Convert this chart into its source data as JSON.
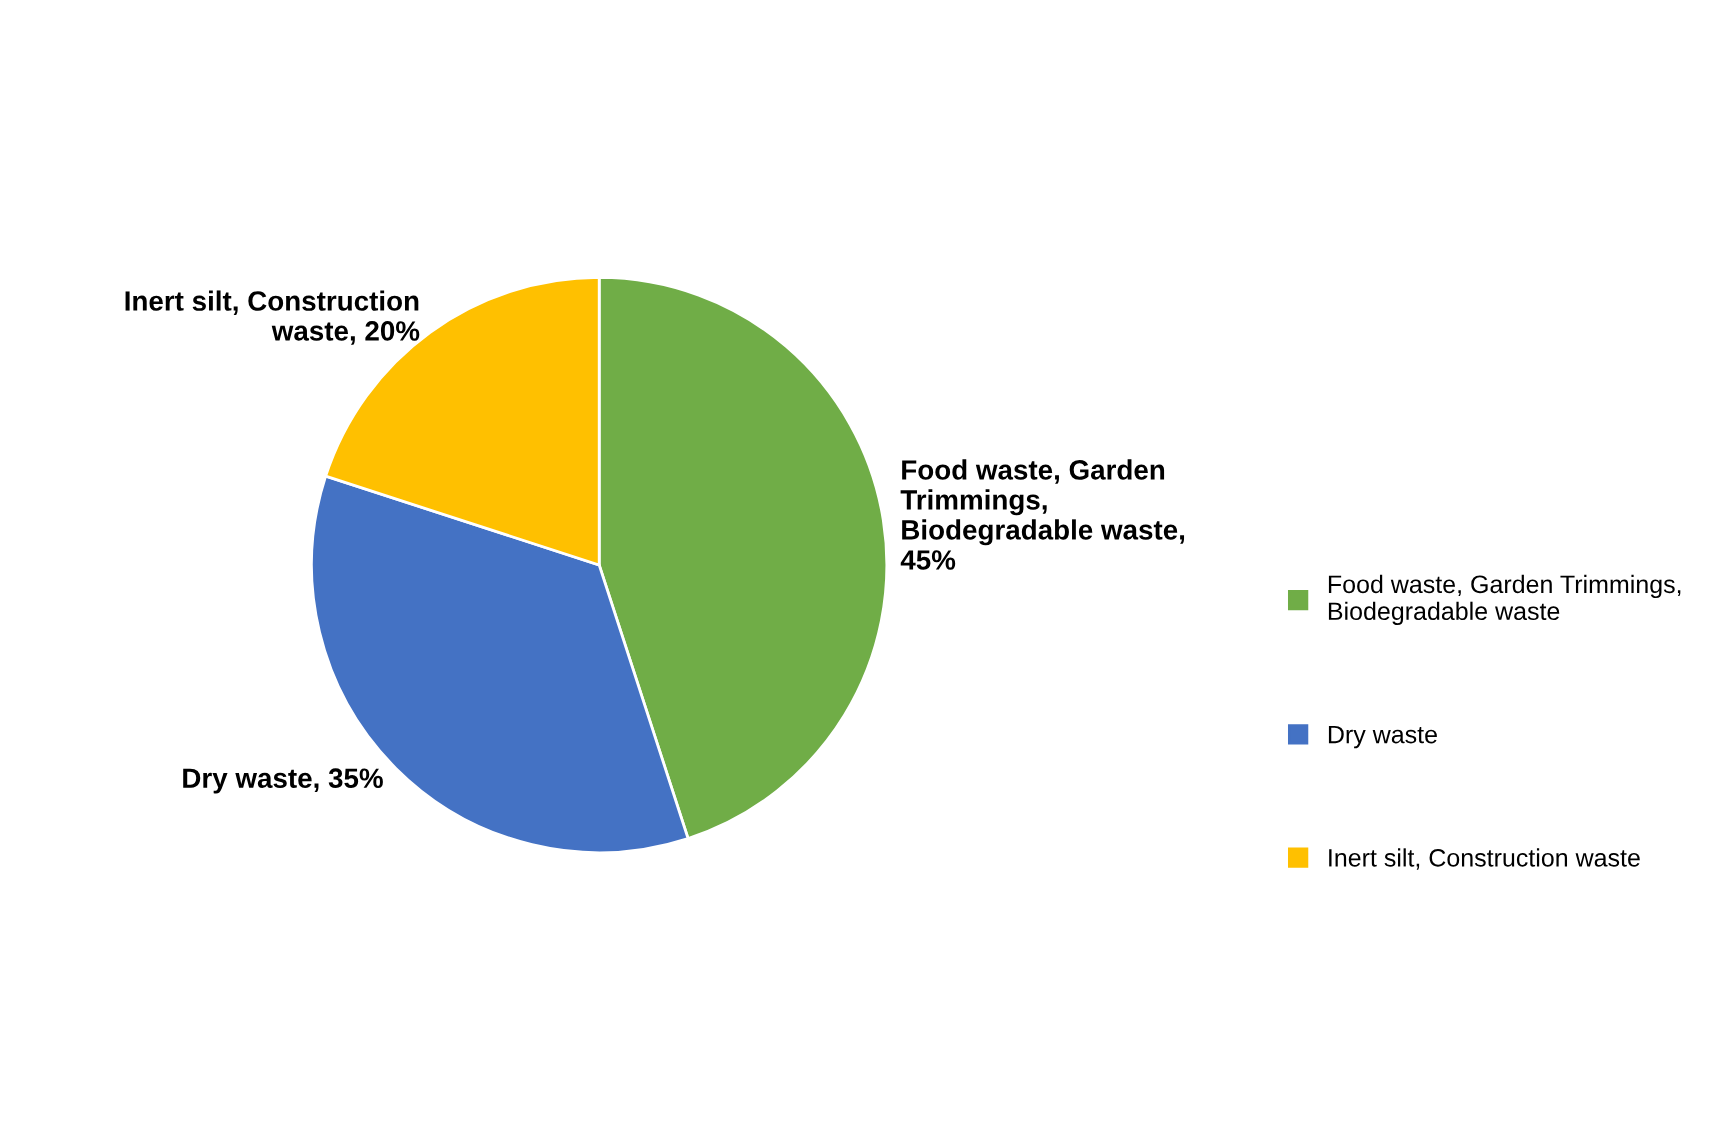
{
  "chart_data": {
    "type": "pie",
    "categories": [
      "Food waste, Garden Trimmings, Biodegradable waste",
      "Dry waste",
      "Inert silt, Construction waste"
    ],
    "values": [
      45,
      35,
      20
    ],
    "colors": [
      "#70ad47",
      "#4472c4",
      "#ffc000"
    ],
    "value_labels": [
      "Food waste, Garden Trimmings, Biodegradable waste, 45%",
      "Dry waste, 35%",
      "Inert silt, Construction waste, 20%"
    ],
    "legend": "right"
  }
}
